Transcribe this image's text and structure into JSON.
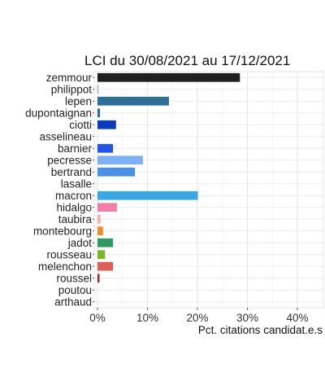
{
  "chart_data": {
    "type": "bar",
    "orientation": "horizontal",
    "title": "LCI du 30/08/2021 au 17/12/2021",
    "xlabel": "Pct. citations candidat.e.s",
    "ylabel": "",
    "xlim": [
      0,
      45
    ],
    "xticks": [
      0,
      10,
      20,
      30,
      40
    ],
    "xtick_labels": [
      "0%",
      "10%",
      "20%",
      "30%",
      "40%"
    ],
    "grid": true,
    "categories": [
      "zemmour",
      "philippot",
      "lepen",
      "dupontaignan",
      "ciotti",
      "asselineau",
      "barnier",
      "pecresse",
      "bertrand",
      "lasalle",
      "macron",
      "hidalgo",
      "taubira",
      "montebourg",
      "jadot",
      "rousseau",
      "melenchon",
      "roussel",
      "poutou",
      "arthaud"
    ],
    "values": [
      28.5,
      0.1,
      14.3,
      0.5,
      3.7,
      0.0,
      3.1,
      9.1,
      7.5,
      0.0,
      20.1,
      3.9,
      0.6,
      1.1,
      3.1,
      1.5,
      3.1,
      0.4,
      0.0,
      0.0
    ],
    "colors": [
      "#1e1e1e",
      "#2f5fa0",
      "#2f6f95",
      "#2b7096",
      "#0a3bbf",
      "#1e46c8",
      "#2156e8",
      "#7fb0f5",
      "#4a8fe8",
      "#5aa5ea",
      "#3aa8e6",
      "#f57fa8",
      "#f4b0a0",
      "#f08c2a",
      "#2e9a62",
      "#7ab42b",
      "#dc6058",
      "#9a2a2a",
      "#c86060",
      "#8a1a1a"
    ]
  }
}
